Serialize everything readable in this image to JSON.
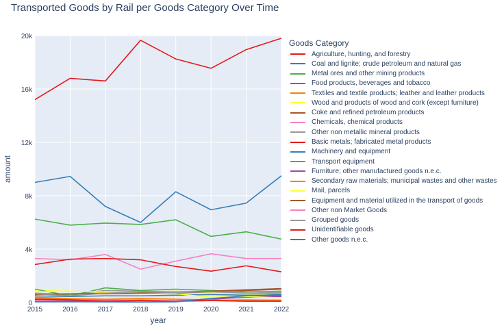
{
  "chart_data": {
    "type": "line",
    "title": "Transported Goods by Rail per Goods Category Over Time",
    "xlabel": "year",
    "ylabel": "amount",
    "legend_title": "Goods Category",
    "legend_position": "right",
    "grid": true,
    "background": "#E5ECF6",
    "x": [
      2015,
      2016,
      2017,
      2018,
      2019,
      2020,
      2021,
      2022
    ],
    "xlim": [
      2015,
      2022
    ],
    "ylim": [
      0,
      20000
    ],
    "yticks": [
      0,
      4000,
      8000,
      12000,
      16000,
      20000
    ],
    "ytick_labels": [
      "0",
      "4k",
      "8k",
      "12k",
      "16k",
      "20k"
    ],
    "series": [
      {
        "name": "Agriculture, hunting, and forestry",
        "color": "#e41a1c",
        "values": [
          15200,
          16800,
          16600,
          19650,
          18250,
          17550,
          18950,
          19800
        ]
      },
      {
        "name": "Coal and lignite; crude petroleum and natural gas",
        "color": "#377eb8",
        "values": [
          9000,
          9450,
          7200,
          6000,
          8300,
          6950,
          7450,
          9500
        ]
      },
      {
        "name": "Metal ores and other mining products",
        "color": "#4daf4a",
        "values": [
          6250,
          5800,
          5950,
          5850,
          6200,
          4950,
          5300,
          4750
        ]
      },
      {
        "name": "Food products, beverages and tobacco",
        "color": "#984ea3",
        "values": [
          200,
          150,
          100,
          150,
          120,
          250,
          400,
          450
        ]
      },
      {
        "name": "Textiles and textile products; leather and leather products",
        "color": "#ff7f00",
        "values": [
          300,
          250,
          200,
          150,
          100,
          150,
          200,
          180
        ]
      },
      {
        "name": "Wood and products of wood and cork (except furniture)",
        "color": "#ffff33",
        "values": [
          900,
          850,
          750,
          800,
          850,
          700,
          650,
          600
        ]
      },
      {
        "name": "Coke and refined petroleum products",
        "color": "#a65628",
        "values": [
          600,
          650,
          700,
          750,
          700,
          800,
          900,
          1000
        ]
      },
      {
        "name": "Chemicals, chemical products",
        "color": "#f781bf",
        "values": [
          3300,
          3200,
          3600,
          2500,
          3100,
          3650,
          3300,
          3300
        ]
      },
      {
        "name": "Other non metallic mineral products",
        "color": "#999999",
        "values": [
          700,
          600,
          900,
          850,
          800,
          850,
          700,
          750
        ]
      },
      {
        "name": "Basic metals; fabricated metal products",
        "color": "#e41a1c",
        "values": [
          2850,
          3250,
          3300,
          3200,
          2700,
          2350,
          2750,
          2300
        ]
      },
      {
        "name": "Machinery and equipment",
        "color": "#377eb8",
        "values": [
          500,
          450,
          500,
          500,
          550,
          600,
          550,
          550
        ]
      },
      {
        "name": "Transport equipment",
        "color": "#4daf4a",
        "values": [
          1000,
          500,
          1100,
          900,
          1000,
          900,
          800,
          850
        ]
      },
      {
        "name": "Furniture; other manufactured goods n.e.c.",
        "color": "#984ea3",
        "values": [
          100,
          80,
          60,
          50,
          60,
          300,
          450,
          500
        ]
      },
      {
        "name": "Secondary raw materials; municipal wastes and other wastes",
        "color": "#ff7f00",
        "values": [
          400,
          300,
          250,
          300,
          250,
          200,
          150,
          150
        ]
      },
      {
        "name": "Mail, parcels",
        "color": "#ffff33",
        "values": [
          800,
          850,
          800,
          700,
          650,
          400,
          450,
          350
        ]
      },
      {
        "name": "Equipment and material utilized in the transport of goods",
        "color": "#a65628",
        "values": [
          600,
          650,
          650,
          700,
          750,
          850,
          950,
          1050
        ]
      },
      {
        "name": "Other non Market Goods",
        "color": "#f781bf",
        "values": [
          150,
          200,
          150,
          200,
          100,
          150,
          100,
          100
        ]
      },
      {
        "name": "Grouped goods",
        "color": "#999999",
        "values": [
          650,
          500,
          700,
          800,
          750,
          800,
          700,
          650
        ]
      },
      {
        "name": "Unidentifiable goods",
        "color": "#e41a1c",
        "values": [
          250,
          200,
          100,
          150,
          100,
          150,
          100,
          100
        ]
      },
      {
        "name": "Other goods n.e.c.",
        "color": "#377eb8",
        "values": [
          50,
          50,
          40,
          30,
          50,
          300,
          500,
          600
        ]
      }
    ]
  }
}
